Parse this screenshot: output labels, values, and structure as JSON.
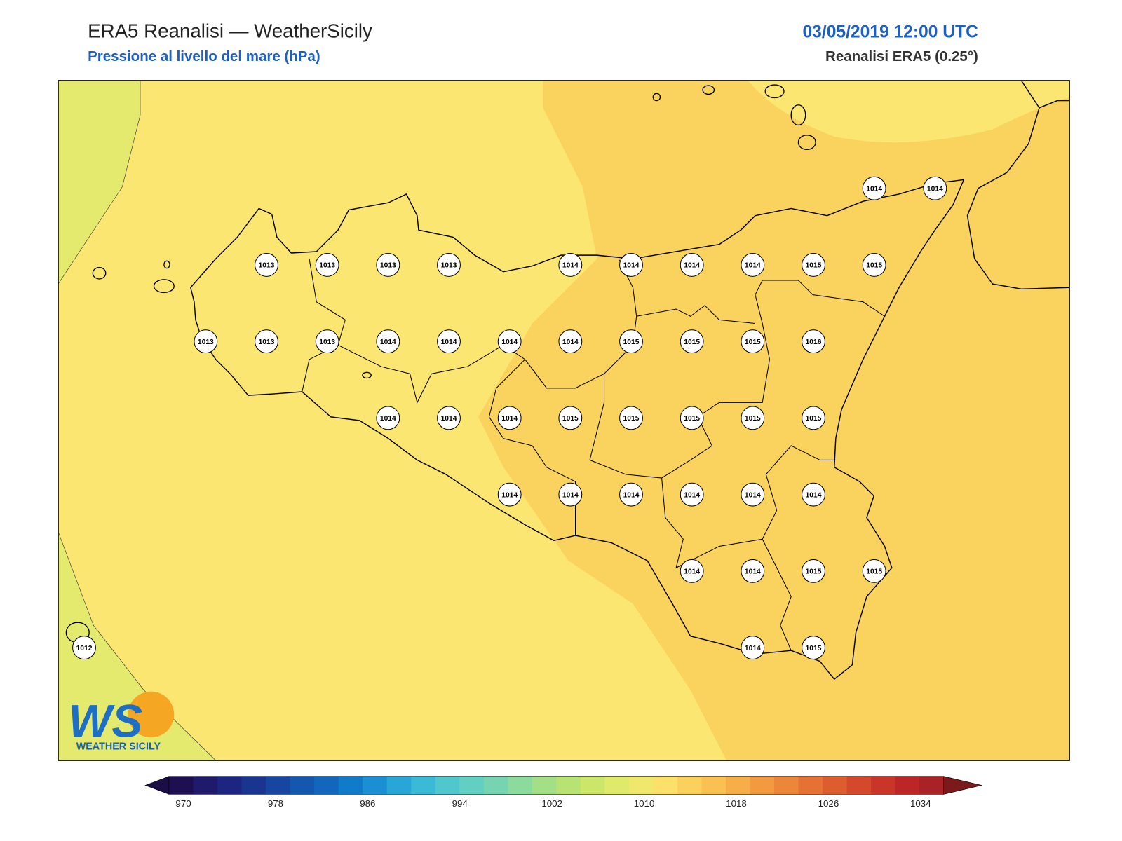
{
  "header": {
    "title": "ERA5 Reanalisi — WeatherSicily",
    "subtitle": "Pressione al livello del mare (hPa)",
    "datetime": "03/05/2019 12:00 UTC",
    "source": "Reanalisi ERA5 (0.25°)"
  },
  "stations": {
    "rows": [
      [
        null,
        null,
        null,
        null,
        null,
        null,
        null,
        null,
        null,
        null,
        null,
        null,
        null,
        1014,
        1014
      ],
      [
        null,
        null,
        null,
        1013,
        1013,
        1013,
        1013,
        null,
        1014,
        1014,
        1014,
        1014,
        1015,
        1015,
        null
      ],
      [
        null,
        null,
        1013,
        1013,
        1013,
        1014,
        1014,
        1014,
        1014,
        1015,
        1015,
        1015,
        1016,
        null,
        null
      ],
      [
        null,
        null,
        null,
        null,
        null,
        1014,
        1014,
        1014,
        1015,
        1015,
        1015,
        1015,
        1015,
        null,
        null
      ],
      [
        null,
        null,
        null,
        null,
        null,
        null,
        null,
        1014,
        1014,
        1014,
        1014,
        1014,
        1014,
        null,
        null
      ],
      [
        null,
        null,
        null,
        null,
        null,
        null,
        null,
        null,
        null,
        null,
        1014,
        1014,
        1015,
        1015,
        null
      ],
      [
        1012,
        null,
        null,
        null,
        null,
        null,
        null,
        null,
        null,
        null,
        null,
        1014,
        1015,
        null,
        null
      ]
    ]
  },
  "colorbar": {
    "range": [
      970,
      1034
    ],
    "ticks": [
      970,
      978,
      986,
      994,
      1002,
      1010,
      1018,
      1026,
      1034
    ],
    "colors": [
      "#1e1050",
      "#1f1a6a",
      "#1c2680",
      "#1a3590",
      "#16469f",
      "#1556ae",
      "#1267bd",
      "#0f7bc9",
      "#1a90d2",
      "#28a6d6",
      "#3bbad6",
      "#4fc7cc",
      "#62cfc0",
      "#76d5b0",
      "#8cdb9c",
      "#a2df86",
      "#b7e374",
      "#cce66a",
      "#dfe96a",
      "#f0e86c",
      "#fce06a",
      "#fbd15e",
      "#f8c152",
      "#f5ae48",
      "#f19a40",
      "#ec863a",
      "#e57234",
      "#dd5d2f",
      "#d4482b",
      "#c93528",
      "#bc2627",
      "#a82226"
    ],
    "under": "#1a0e46",
    "over": "#7a1a1a"
  },
  "logo": {
    "mark": "WS",
    "name": "WEATHER SICILY"
  }
}
